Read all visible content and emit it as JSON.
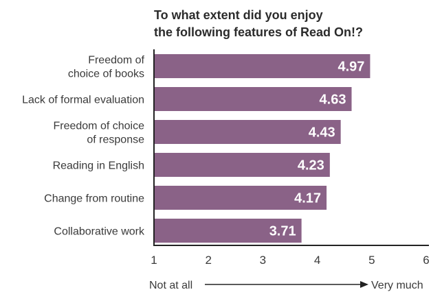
{
  "chart_data": {
    "type": "bar",
    "orientation": "horizontal",
    "title_lines": [
      "To what extent did you enjoy",
      "the following features of Read On!?"
    ],
    "categories": [
      [
        "Freedom of",
        "choice of books"
      ],
      [
        "Lack of formal evaluation"
      ],
      [
        "Freedom of choice",
        "of response"
      ],
      [
        "Reading in English"
      ],
      [
        "Change from routine"
      ],
      [
        "Collaborative work"
      ]
    ],
    "values": [
      4.97,
      4.63,
      4.43,
      4.23,
      4.17,
      3.71
    ],
    "value_labels": [
      "4.97",
      "4.63",
      "4.43",
      "4.23",
      "4.17",
      "3.71"
    ],
    "xlim": [
      1,
      6
    ],
    "xticks": [
      "1",
      "2",
      "3",
      "4",
      "5",
      "6"
    ],
    "scale_low_label": "Not at all",
    "scale_high_label": "Very much",
    "grid": false,
    "legend": "none",
    "bar_color": "#8a6287",
    "axis_color": "#222222"
  }
}
